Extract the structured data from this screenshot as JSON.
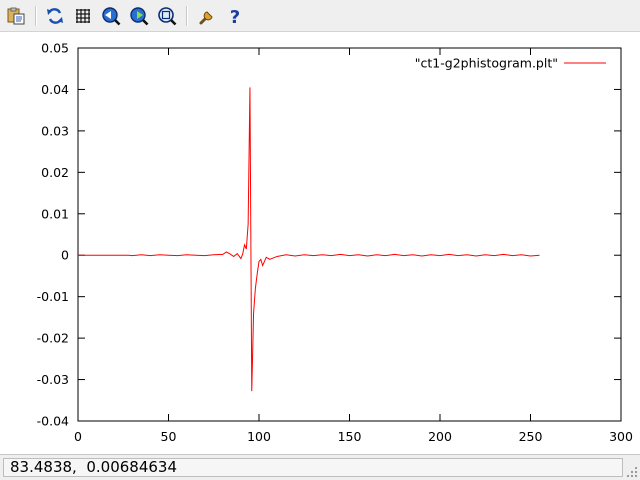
{
  "toolbar": {
    "buttons": [
      {
        "name": "copy-to-clipboard-icon"
      },
      {
        "name": "replot-icon"
      },
      {
        "name": "grid-icon"
      },
      {
        "name": "zoom-previous-icon"
      },
      {
        "name": "zoom-next-icon"
      },
      {
        "name": "autoscale-icon"
      },
      {
        "name": "settings-icon"
      },
      {
        "name": "help-icon"
      }
    ],
    "help_glyph": "?"
  },
  "status": {
    "coordinates": "83.4838,  0.00684634"
  },
  "colors": {
    "series": "#ff0000",
    "toolbar_bg": "#efefef"
  },
  "chart_data": {
    "type": "line",
    "title": "",
    "xlabel": "",
    "ylabel": "",
    "xlim": [
      0,
      300
    ],
    "ylim": [
      -0.04,
      0.05
    ],
    "xticks": [
      0,
      50,
      100,
      150,
      200,
      250,
      300
    ],
    "yticks": [
      -0.04,
      -0.03,
      -0.02,
      -0.01,
      0,
      0.01,
      0.02,
      0.03,
      0.04,
      0.05
    ],
    "xtick_labels": [
      "0",
      "50",
      "100",
      "150",
      "200",
      "250",
      "300"
    ],
    "ytick_labels": [
      "-0.04",
      "-0.03",
      "-0.02",
      "-0.01",
      "0",
      "0.01",
      "0.02",
      "0.03",
      "0.04",
      "0.05"
    ],
    "grid": false,
    "legend": "top-right",
    "series": [
      {
        "name": "\"ct1-g2phistogram.plt\"",
        "color": "#ff0000",
        "x": [
          0,
          28,
          30,
          35,
          40,
          45,
          50,
          55,
          60,
          65,
          70,
          75,
          80,
          82,
          84,
          86,
          88,
          90,
          91,
          92,
          93,
          94,
          95,
          96,
          97,
          98,
          99,
          100,
          101,
          102,
          104,
          106,
          110,
          115,
          120,
          125,
          130,
          135,
          140,
          145,
          150,
          155,
          160,
          165,
          170,
          175,
          180,
          185,
          190,
          195,
          200,
          205,
          210,
          215,
          220,
          225,
          230,
          235,
          240,
          245,
          250,
          255
        ],
        "y": [
          0,
          0,
          -0.0001,
          0.0001,
          -0.0001,
          0.0001,
          0,
          -0.0001,
          0.0001,
          0,
          -0.0001,
          0.0001,
          0.0002,
          0.0008,
          0.0003,
          -0.0003,
          0.0004,
          -0.0008,
          0.0003,
          0.0025,
          0.0015,
          0.0075,
          0.0405,
          -0.0328,
          -0.014,
          -0.008,
          -0.0045,
          -0.0015,
          -0.001,
          -0.0025,
          -0.0005,
          -0.001,
          -0.0003,
          0.0001,
          -0.0002,
          0.0001,
          -0.0001,
          0.0001,
          -0.0001,
          0.0002,
          -0.0001,
          0.0001,
          -0.0002,
          0.0001,
          -0.0001,
          0.0002,
          -0.0001,
          0.0001,
          -0.0002,
          0.0001,
          -0.0001,
          0.0002,
          -0.0001,
          0.0001,
          -0.0002,
          0.0001,
          -0.0001,
          0.0002,
          -0.0001,
          0.0001,
          -0.0002,
          0
        ]
      }
    ]
  }
}
